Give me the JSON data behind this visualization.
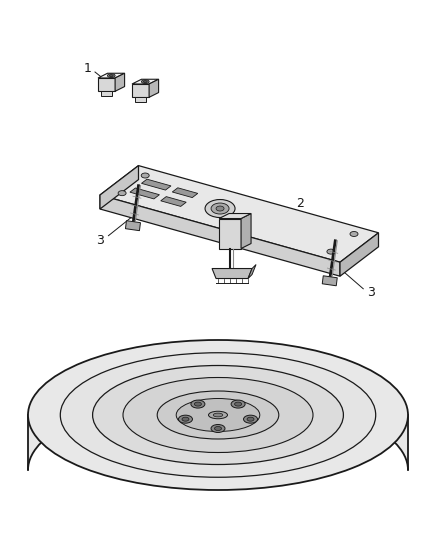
{
  "bg_color": "#ffffff",
  "line_color": "#1a1a1a",
  "fill_light": "#f0f0f0",
  "fill_mid": "#d8d8d8",
  "fill_dark": "#b8b8b8",
  "fill_darker": "#909090",
  "figsize": [
    4.39,
    5.33
  ],
  "dpi": 100,
  "label_fontsize": 9
}
